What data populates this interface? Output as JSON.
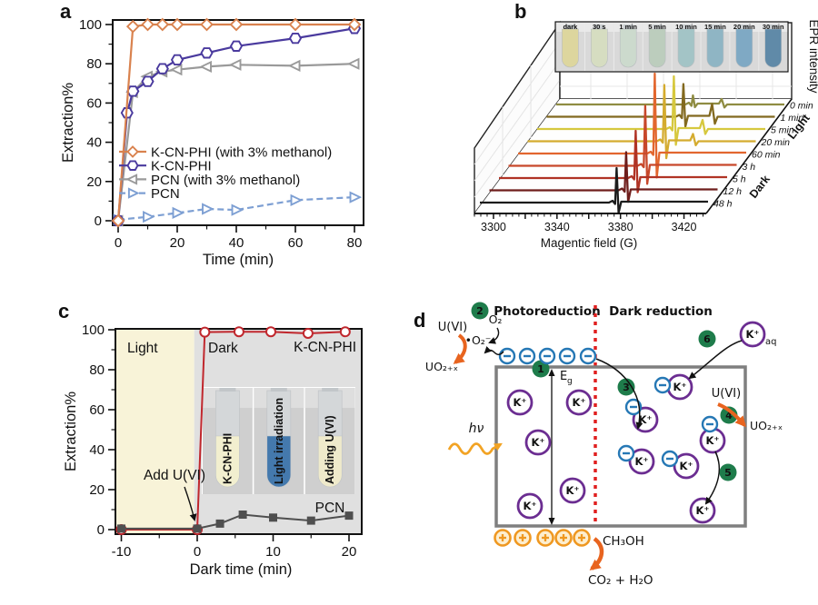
{
  "panel_labels": {
    "a": "a",
    "b": "b",
    "c": "c",
    "d": "d"
  },
  "chart_data": [
    {
      "panel": "a",
      "type": "line",
      "xlabel": "Time (min)",
      "ylabel": "Extraction%",
      "xlim": [
        0,
        80
      ],
      "ylim": [
        0,
        100
      ],
      "xticks": [
        0,
        20,
        40,
        60,
        80
      ],
      "xminor": [
        10,
        30,
        50,
        70
      ],
      "yticks": [
        0,
        20,
        40,
        60,
        80,
        100
      ],
      "yminor": [
        10,
        30,
        50,
        70,
        90
      ],
      "series": [
        {
          "name": "K-CN-PHI (with 3% methanol)",
          "color": "#d9824e",
          "marker": "diamond",
          "line": "solid",
          "x": [
            0,
            5,
            10,
            15,
            20,
            30,
            40,
            60,
            80
          ],
          "y": [
            0,
            99,
            100,
            100,
            100,
            100,
            100,
            100,
            100
          ]
        },
        {
          "name": "K-CN-PHI",
          "color": "#4a3a9e",
          "marker": "hexagon",
          "line": "solid",
          "x": [
            0,
            3,
            5,
            10,
            15,
            20,
            30,
            40,
            60,
            80
          ],
          "y": [
            0,
            55,
            66,
            71,
            77.5,
            82,
            85.5,
            89,
            93,
            98
          ]
        },
        {
          "name": "PCN (with 3% methanol)",
          "color": "#9a9a9a",
          "marker": "triangle-left",
          "line": "solid",
          "x": [
            0,
            5,
            10,
            15,
            20,
            30,
            40,
            60,
            80
          ],
          "y": [
            0,
            65.5,
            73.5,
            76,
            77,
            78.5,
            79.5,
            79,
            80
          ]
        },
        {
          "name": "PCN",
          "color": "#7d9fd3",
          "marker": "triangle-right",
          "line": "dashed",
          "x": [
            0,
            10,
            20,
            30,
            40,
            60,
            80
          ],
          "y": [
            0.5,
            2,
            4,
            6,
            5.5,
            10.5,
            12
          ]
        }
      ]
    },
    {
      "panel": "b",
      "type": "line",
      "subtype": "3d-waterfall-EPR",
      "xlabel": "Magentic field (G)",
      "ylabel": "EPR intensity",
      "x_range": [
        3288,
        3434
      ],
      "xticks": [
        3300,
        3340,
        3380,
        3420
      ],
      "peak_center_G": 3376,
      "satellite_center_G": 3396,
      "group_labels": {
        "light": "Light",
        "dark": "Dark"
      },
      "colors": {
        "light_label": "#d42323",
        "dark_label": "#4a4a4a"
      },
      "series": [
        {
          "name": "0 min",
          "group": "Light",
          "color": "#8f8c42",
          "peak_height": 10,
          "satellite": 6
        },
        {
          "name": "1 min",
          "group": "Light",
          "color": "#82691f",
          "peak_height": 36,
          "satellite": 14
        },
        {
          "name": "5 min",
          "group": "Light",
          "color": "#d6c83e",
          "peak_height": 58,
          "satellite": 10
        },
        {
          "name": "20 min",
          "group": "Light",
          "color": "#d4ab2e",
          "peak_height": 62,
          "satellite": 8
        },
        {
          "name": "60 min",
          "group": "Light",
          "color": "#e2662e",
          "peak_height": 88,
          "satellite": 0
        },
        {
          "name": "3 h",
          "group": "Dark",
          "color": "#c7472a",
          "peak_height": 66,
          "satellite": 0
        },
        {
          "name": "5 h",
          "group": "Dark",
          "color": "#b03325",
          "peak_height": 52,
          "satellite": 0
        },
        {
          "name": "12 h",
          "group": "Dark",
          "color": "#6e1d1b",
          "peak_height": 42,
          "satellite": 0
        },
        {
          "name": "48 h",
          "group": "Dark",
          "color": "#1c1c1c",
          "peak_height": 38,
          "satellite": 0
        }
      ],
      "photo_inset": {
        "label_color": "#b51f1f",
        "vials": [
          {
            "label": "dark",
            "color": "#ddd69e"
          },
          {
            "label": "30 s",
            "color": "#d6ddc1"
          },
          {
            "label": "1 min",
            "color": "#ccdacd"
          },
          {
            "label": "5 min",
            "color": "#bccdbd"
          },
          {
            "label": "10 min",
            "color": "#a3c4c6"
          },
          {
            "label": "15 min",
            "color": "#8fb5c4"
          },
          {
            "label": "20 min",
            "color": "#7fa9c4"
          },
          {
            "label": "30 min",
            "color": "#608aa8"
          }
        ]
      }
    },
    {
      "panel": "c",
      "type": "line",
      "xlabel": "Dark time (min)",
      "ylabel": "Extraction%",
      "xlim": [
        -10,
        20
      ],
      "ylim": [
        0,
        100
      ],
      "xticks": [
        -10,
        0,
        10,
        20
      ],
      "xminor": [
        -5,
        5,
        15
      ],
      "yticks": [
        0,
        20,
        40,
        60,
        80,
        100
      ],
      "yminor": [
        10,
        30,
        50,
        70,
        90
      ],
      "regions": [
        {
          "label": "Light",
          "color": "#f8f3d8",
          "x0": -10.8,
          "x1": -0.4
        },
        {
          "label": "Dark",
          "color": "#e0e0e0",
          "x0": -0.4,
          "x1": 21.7
        }
      ],
      "annotation": {
        "text": "Add U(VI)"
      },
      "series": [
        {
          "name": "K-CN-PHI",
          "color": "#c0272d",
          "marker": "circle",
          "line": "solid",
          "x": [
            -10,
            0,
            1,
            5.5,
            9.7,
            14.6,
            19.5
          ],
          "y": [
            0,
            0,
            98.8,
            99,
            99,
            98.2,
            99
          ]
        },
        {
          "name": "PCN",
          "color": "#4f4f4f",
          "marker": "square",
          "line": "solid",
          "x": [
            -10,
            0,
            3,
            6,
            10,
            15,
            20
          ],
          "y": [
            0.5,
            0.5,
            3,
            7.5,
            6,
            4.5,
            7
          ]
        }
      ],
      "inset": {
        "label_color": "#e0742a",
        "vials": [
          {
            "label": "K-CN-PHI",
            "liquid": "#f2efcf"
          },
          {
            "label": "Light irradiation",
            "liquid": "#4479ad"
          },
          {
            "label": "Adding U(VI)",
            "liquid": "#efeacb"
          }
        ]
      }
    }
  ],
  "panel_d": {
    "left_title": "Photoreduction",
    "right_title": "Dark reduction",
    "k_ion": "K⁺",
    "k_aq_sub": "aq",
    "badges": [
      "1",
      "2",
      "3",
      "4",
      "5",
      "6"
    ],
    "labels": {
      "u6_left": "U(VI)",
      "uo2x_left": "UO₂₊ₓ",
      "o2": "O₂",
      "superoxide": "•O₂⁻",
      "eg_base": "E",
      "eg_sub": "g",
      "hv": "hν",
      "u6_right": "U(VI)",
      "uo2x_right": "UO₂₊ₓ",
      "ch3oh": "CH₃OH",
      "co2_h2o": "CO₂ + H₂O"
    },
    "colors": {
      "k_purple": "#6b2d91",
      "electron_blue": "#2678b5",
      "hole_orange": "#ef9821",
      "badge_green": "#1e7c4b",
      "red": "#e01f1f",
      "orange_arrow": "#e8641f",
      "box_gray": "#7f7f7f"
    }
  }
}
